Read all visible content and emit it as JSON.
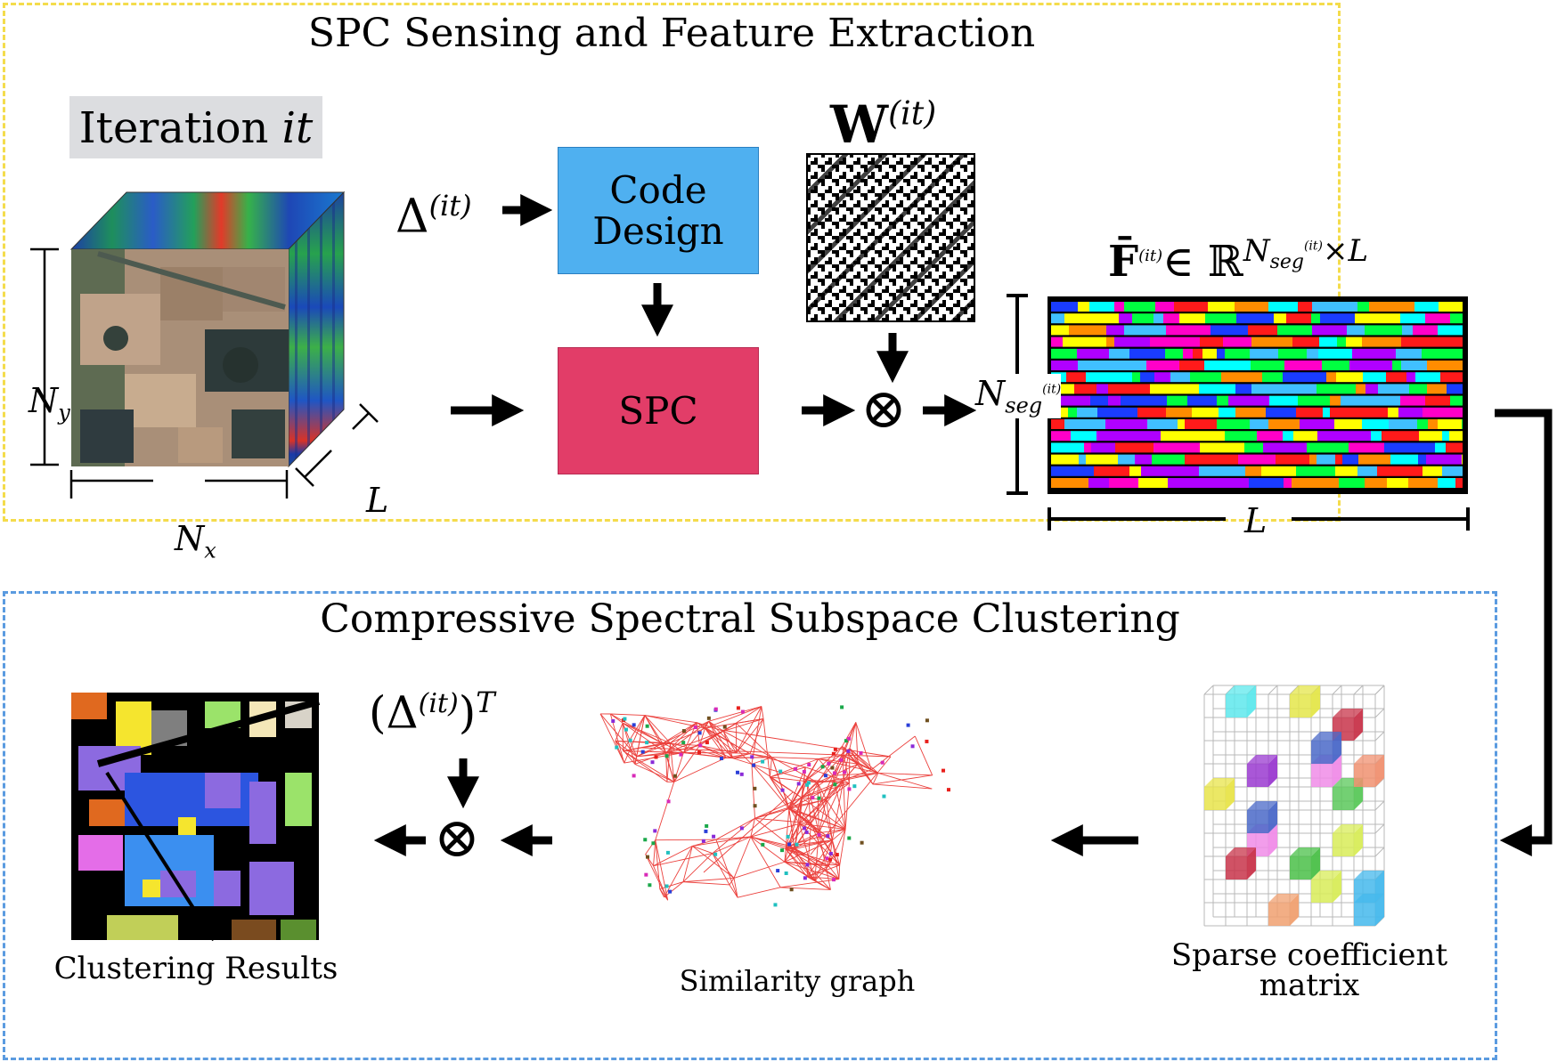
{
  "top_panel": {
    "title": "SPC Sensing and Feature Extraction",
    "iteration_label": "Iteration",
    "iteration_var": "it",
    "delta_label": "Δ",
    "delta_sup": "(it)",
    "code_design_line1": "Code",
    "code_design_line2": "Design",
    "spc_label": "SPC",
    "w_label": "W",
    "w_sup": "(it)",
    "f_label": "F̄",
    "f_sup": "(it)",
    "f_space": "∈ ℝ",
    "f_exp_main": "N",
    "f_exp_sub": "seg",
    "f_exp_sup": "(it)",
    "f_exp_tail": "×L",
    "nseg_main": "N",
    "nseg_sub": "seg",
    "nseg_sup": "(it)",
    "ny_main": "N",
    "ny_sub": "y",
    "nx_main": "N",
    "nx_sub": "x",
    "l_depth": "L",
    "l_width": "L",
    "otimes": "⊗"
  },
  "bottom_panel": {
    "title": "Compressive Spectral Subspace Clustering",
    "delta_t_open": "(Δ",
    "delta_t_sup": "(it)",
    "delta_t_close": ")",
    "delta_t_exp": "T",
    "otimes": "⊗",
    "clustering_caption": "Clustering Results",
    "graph_caption": "Similarity graph",
    "sparse_caption_line1": "Sparse coefficient",
    "sparse_caption_line2": "matrix"
  },
  "colors": {
    "top_border": "#f4dc4c",
    "bottom_border": "#5b9be0",
    "code_design_fill": "#4fb0f0",
    "spc_fill": "#e23d68",
    "iteration_fill": "#dcdde0",
    "graph_edges": "#e8201c"
  }
}
